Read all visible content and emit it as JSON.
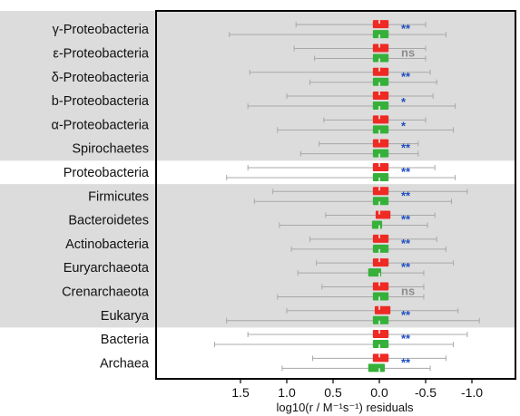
{
  "chart_data": {
    "type": "box",
    "xlabel": "log10(r / M⁻¹s⁻¹) residuals",
    "x_ticks": [
      "1.5",
      "1.0",
      "0.5",
      "0.0",
      "-0.5",
      "-1.0"
    ],
    "x_reversed": true,
    "xlim": [
      1.8,
      -1.15
    ],
    "categories": [
      {
        "name": "γ-Proteobacteria",
        "sig": "**",
        "shaded": true,
        "box_upper": [
          0.07,
          -0.1
        ],
        "box_lower": [
          0.07,
          -0.1
        ],
        "whisker_upper": [
          0.9,
          -0.5
        ],
        "whisker_lower": [
          1.62,
          -0.72
        ]
      },
      {
        "name": "ε-Proteobacteria",
        "sig": "ns",
        "shaded": true,
        "box_upper": [
          0.07,
          -0.1
        ],
        "box_lower": [
          0.07,
          -0.1
        ],
        "whisker_upper": [
          0.92,
          -0.5
        ],
        "whisker_lower": [
          0.7,
          -0.5
        ]
      },
      {
        "name": "δ-Proteobacteria",
        "sig": "**",
        "shaded": true,
        "box_upper": [
          0.07,
          -0.1
        ],
        "box_lower": [
          0.07,
          -0.1
        ],
        "whisker_upper": [
          1.4,
          -0.55
        ],
        "whisker_lower": [
          0.75,
          -0.62
        ]
      },
      {
        "name": "b-Proteobacteria",
        "sig": "*",
        "shaded": true,
        "box_upper": [
          0.07,
          -0.1
        ],
        "box_lower": [
          0.07,
          -0.1
        ],
        "whisker_upper": [
          1.0,
          -0.58
        ],
        "whisker_lower": [
          1.42,
          -0.82
        ]
      },
      {
        "name": "α-Proteobacteria",
        "sig": "*",
        "shaded": true,
        "box_upper": [
          0.07,
          -0.1
        ],
        "box_lower": [
          0.07,
          -0.1
        ],
        "whisker_upper": [
          0.6,
          -0.5
        ],
        "whisker_lower": [
          1.1,
          -0.8
        ]
      },
      {
        "name": "Spirochaetes",
        "sig": "**",
        "shaded": true,
        "box_upper": [
          0.07,
          -0.1
        ],
        "box_lower": [
          0.07,
          -0.1
        ],
        "whisker_upper": [
          0.65,
          -0.42
        ],
        "whisker_lower": [
          0.85,
          -0.42
        ]
      },
      {
        "name": "Proteobacteria",
        "sig": "**",
        "shaded": false,
        "box_upper": [
          0.07,
          -0.1
        ],
        "box_lower": [
          0.07,
          -0.1
        ],
        "whisker_upper": [
          1.42,
          -0.6
        ],
        "whisker_lower": [
          1.65,
          -0.82
        ]
      },
      {
        "name": "Firmicutes",
        "sig": "**",
        "shaded": true,
        "box_upper": [
          0.07,
          -0.1
        ],
        "box_lower": [
          0.07,
          -0.1
        ],
        "whisker_upper": [
          1.15,
          -0.95
        ],
        "whisker_lower": [
          1.35,
          -0.78
        ]
      },
      {
        "name": "Bacteroidetes",
        "sig": "**",
        "shaded": true,
        "box_upper": [
          0.04,
          -0.12
        ],
        "box_lower": [
          0.08,
          -0.03
        ],
        "whisker_upper": [
          0.58,
          -0.6
        ],
        "whisker_lower": [
          1.08,
          -0.52
        ]
      },
      {
        "name": "Actinobacteria",
        "sig": "**",
        "shaded": true,
        "box_upper": [
          0.07,
          -0.1
        ],
        "box_lower": [
          0.07,
          -0.1
        ],
        "whisker_upper": [
          0.75,
          -0.62
        ],
        "whisker_lower": [
          0.95,
          -0.72
        ]
      },
      {
        "name": "Euryarchaeota",
        "sig": "**",
        "shaded": true,
        "box_upper": [
          0.07,
          -0.1
        ],
        "box_lower": [
          0.12,
          -0.02
        ],
        "whisker_upper": [
          0.68,
          -0.8
        ],
        "whisker_lower": [
          0.88,
          -0.48
        ]
      },
      {
        "name": "Crenarchaeota",
        "sig": "ns",
        "shaded": true,
        "box_upper": [
          0.07,
          -0.1
        ],
        "box_lower": [
          0.07,
          -0.1
        ],
        "whisker_upper": [
          0.62,
          -0.48
        ],
        "whisker_lower": [
          1.1,
          -0.48
        ]
      },
      {
        "name": "Eukarya",
        "sig": "**",
        "shaded": true,
        "box_upper": [
          0.05,
          -0.12
        ],
        "box_lower": [
          0.07,
          -0.1
        ],
        "whisker_upper": [
          1.0,
          -0.85
        ],
        "whisker_lower": [
          1.65,
          -1.08
        ]
      },
      {
        "name": "Bacteria",
        "sig": "**",
        "shaded": false,
        "box_upper": [
          0.07,
          -0.1
        ],
        "box_lower": [
          0.07,
          -0.1
        ],
        "whisker_upper": [
          1.42,
          -0.95
        ],
        "whisker_lower": [
          1.78,
          -0.8
        ]
      },
      {
        "name": "Archaea",
        "sig": "**",
        "shaded": false,
        "box_upper": [
          0.07,
          -0.1
        ],
        "box_lower": [
          0.12,
          -0.06
        ],
        "whisker_upper": [
          0.72,
          -0.72
        ],
        "whisker_lower": [
          1.05,
          -0.55
        ]
      }
    ],
    "series": [
      {
        "name": "",
        "color": "#ee2a24"
      },
      {
        "name": "",
        "color": "#36b03a"
      }
    ]
  },
  "colors": {
    "shade": "#dcdcdc",
    "whisker": "#a8a8a8",
    "sig_star": "#1f4fbf",
    "sig_ns": "#8c8c8c"
  }
}
